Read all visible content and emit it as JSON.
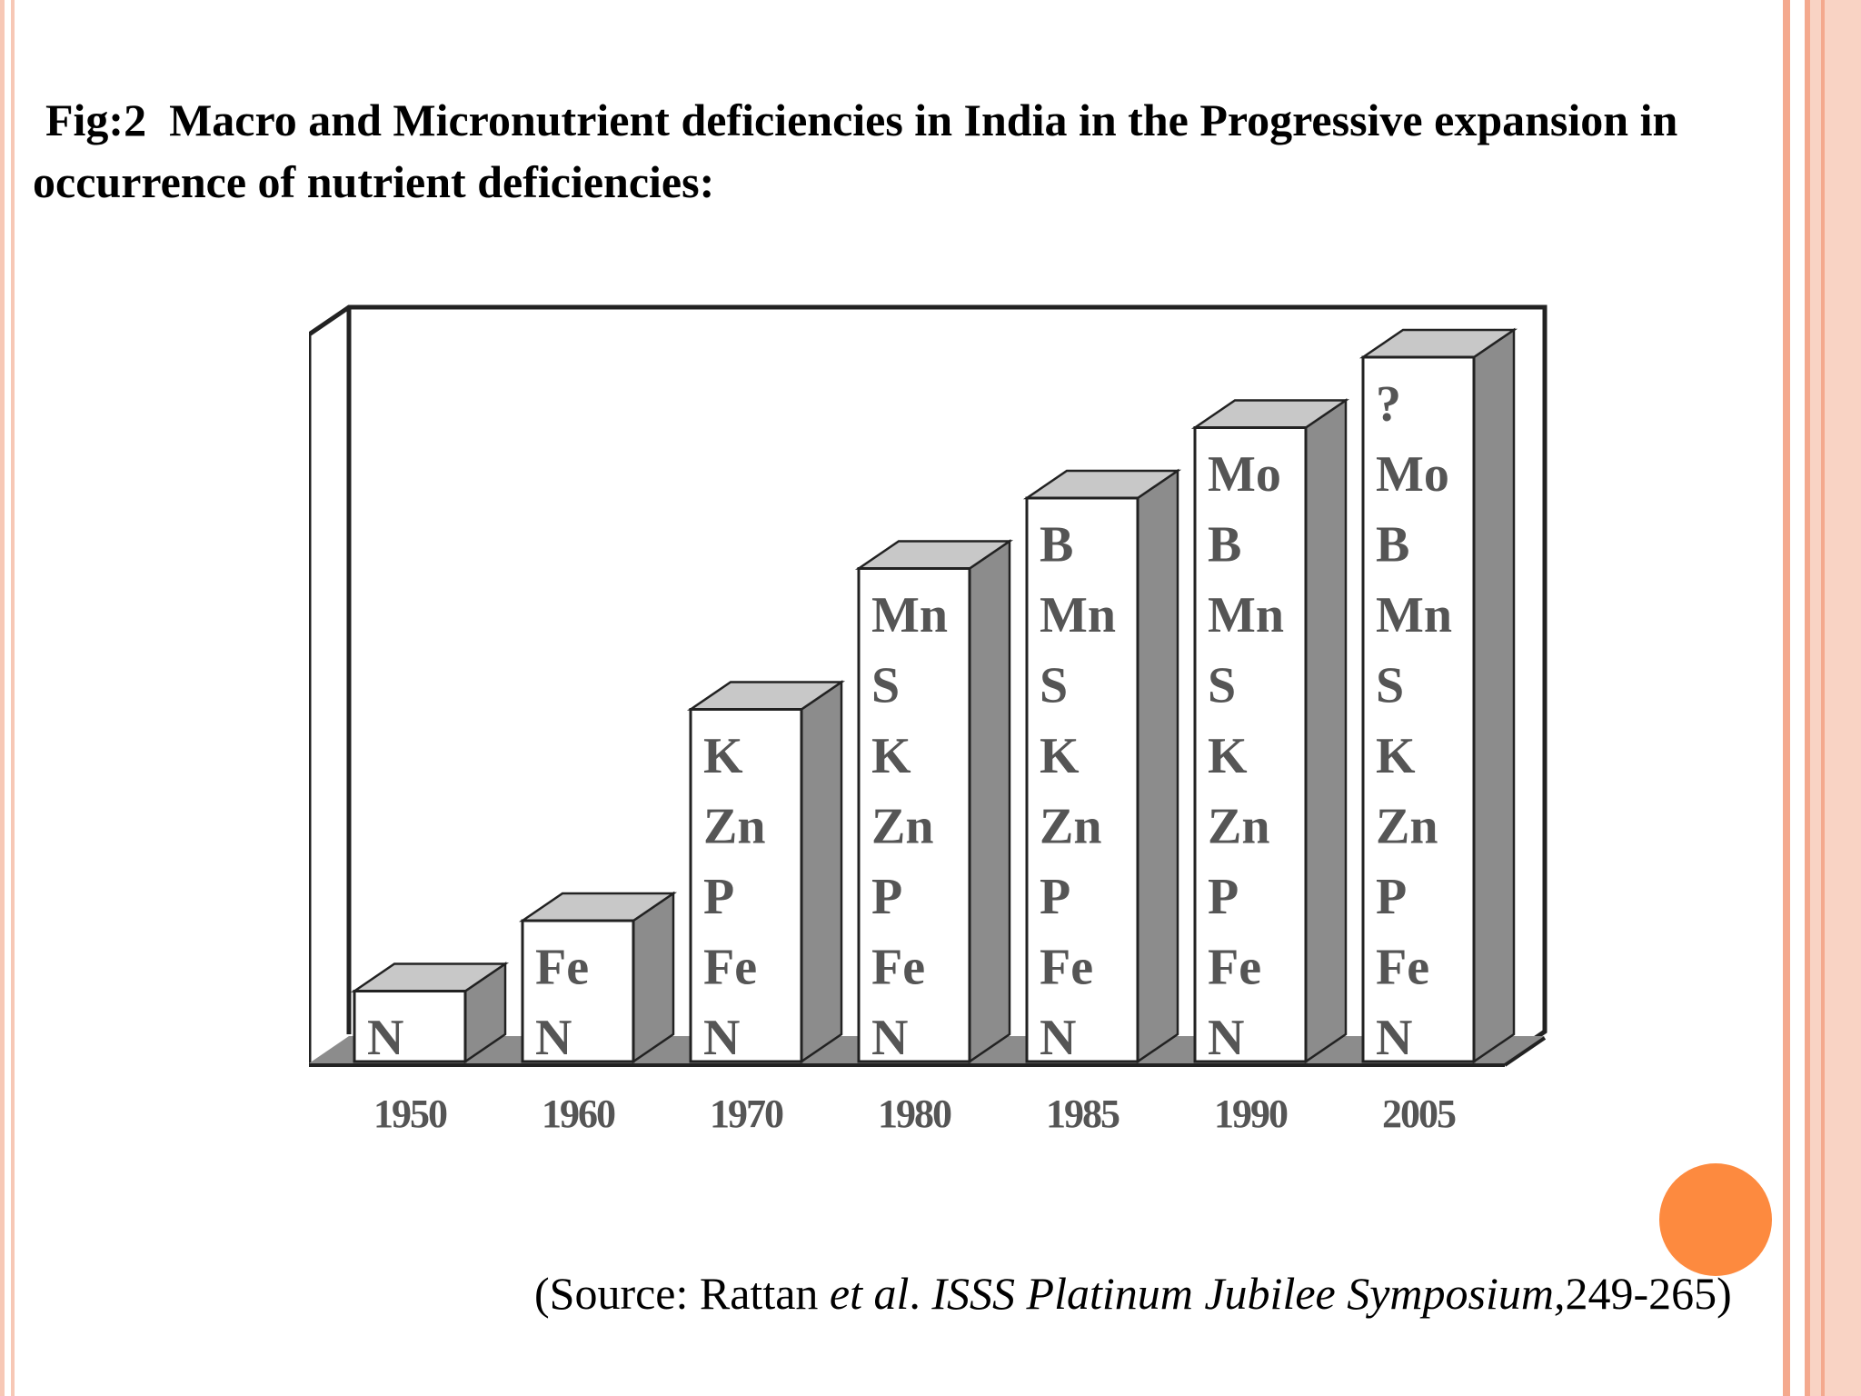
{
  "slide": {
    "title_line_1": "Fig:2  Macro and Micronutrient deficiencies in India in the Progressive expansion in",
    "title_line_2": "occurrence of nutrient deficiencies:",
    "source": {
      "prefix": "(Source: Rattan ",
      "etal": "et al",
      "dot": ". ",
      "journal": "ISSS Platinum Jubilee Symposium,",
      "pages": "249-265)"
    }
  },
  "colors": {
    "bar_front": "#ffffff",
    "bar_top": "#c8c8c8",
    "bar_side": "#8c8c8c",
    "bar_label": "#555555",
    "tick_label": "#555555",
    "frame": "#222222",
    "floor": "#8c8c8c",
    "accent_dot": "#fd8a3f",
    "slide_border": "#f4a98e"
  },
  "chart_data": {
    "type": "bar",
    "title": "",
    "xlabel": "",
    "ylabel": "",
    "categories": [
      "1950",
      "1960",
      "1970",
      "1980",
      "1985",
      "1990",
      "2005"
    ],
    "values": [
      1,
      2,
      5,
      7,
      8,
      9,
      10
    ],
    "ylim": [
      0,
      10
    ],
    "stack_labels": [
      [
        "N"
      ],
      [
        "N",
        "Fe"
      ],
      [
        "N",
        "Fe",
        "P",
        "Zn",
        "K"
      ],
      [
        "N",
        "Fe",
        "P",
        "Zn",
        "K",
        "S",
        "Mn"
      ],
      [
        "N",
        "Fe",
        "P",
        "Zn",
        "K",
        "S",
        "Mn",
        "B"
      ],
      [
        "N",
        "Fe",
        "P",
        "Zn",
        "K",
        "S",
        "Mn",
        "B",
        "Mo"
      ],
      [
        "N",
        "Fe",
        "P",
        "Zn",
        "K",
        "S",
        "Mn",
        "B",
        "Mo",
        "?"
      ]
    ],
    "legend": "none",
    "grid": false,
    "style": "3d-bars"
  }
}
